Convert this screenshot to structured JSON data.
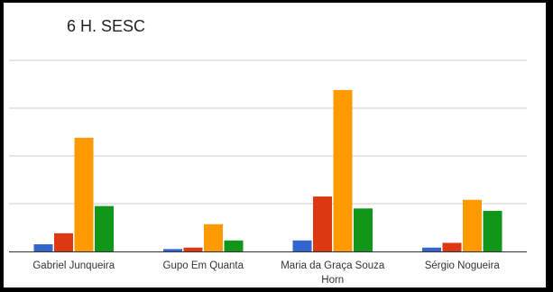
{
  "chart_data": {
    "type": "bar",
    "title": "6 H. SESC",
    "xlabel": "",
    "ylabel": "",
    "categories": [
      [
        "Gabriel Junqueira"
      ],
      [
        "Gupo Em Quanta"
      ],
      [
        "Maria da Graça Souza",
        "Horn"
      ],
      [
        "Sérgio Nogueira"
      ]
    ],
    "series": [
      {
        "color": "#3366cc",
        "values": [
          0.15,
          0.05,
          0.23,
          0.08
        ]
      },
      {
        "color": "#dc3912",
        "values": [
          0.38,
          0.08,
          1.15,
          0.18
        ]
      },
      {
        "color": "#ff9900",
        "values": [
          2.38,
          0.57,
          3.38,
          1.08
        ]
      },
      {
        "color": "#109618",
        "values": [
          0.95,
          0.23,
          0.9,
          0.85
        ]
      }
    ],
    "ylim": [
      0,
      4
    ],
    "grid": true,
    "legend": "none"
  }
}
